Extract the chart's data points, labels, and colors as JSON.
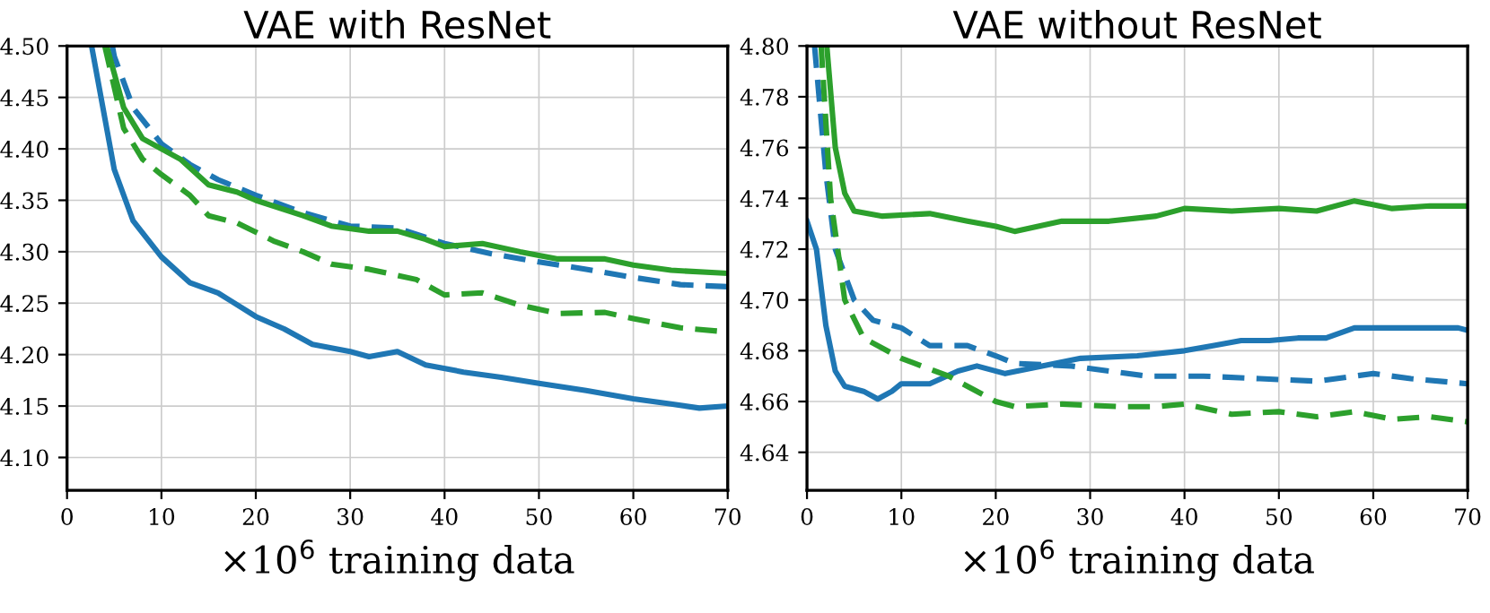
{
  "chart_data": [
    {
      "type": "line",
      "title": "VAE with ResNet",
      "xlabel": "×10$^{6}$ training data",
      "xlim": [
        0,
        70
      ],
      "xticks": [
        0,
        10,
        20,
        30,
        40,
        50,
        60,
        70
      ],
      "ylim": [
        4.068,
        4.5
      ],
      "yticks": [
        {
          "value": 4.1,
          "label": "4.10"
        },
        {
          "value": 4.15,
          "label": "4.15"
        },
        {
          "value": 4.2,
          "label": "4.20"
        },
        {
          "value": 4.25,
          "label": "4.25"
        },
        {
          "value": 4.3,
          "label": "4.30"
        },
        {
          "value": 4.35,
          "label": "4.35"
        },
        {
          "value": 4.4,
          "label": "4.40"
        },
        {
          "value": 4.45,
          "label": "4.45"
        },
        {
          "value": 4.5,
          "label": "4.50"
        }
      ],
      "grid": true,
      "legend": false,
      "marker": "none",
      "series": [
        {
          "color": "#1f77b4",
          "line_style": "solid",
          "x": [
            2.6,
            3,
            5,
            7,
            10,
            13,
            16,
            20,
            23,
            26,
            30,
            32,
            35,
            38,
            42,
            46,
            50,
            55,
            60,
            64,
            67,
            70
          ],
          "values": [
            4.5,
            4.48,
            4.38,
            4.33,
            4.295,
            4.27,
            4.26,
            4.237,
            4.225,
            4.21,
            4.203,
            4.198,
            4.203,
            4.19,
            4.183,
            4.178,
            4.172,
            4.165,
            4.157,
            4.152,
            4.148,
            4.15
          ]
        },
        {
          "color": "#1f77b4",
          "line_style": "dashed",
          "x": [
            4.8,
            5,
            7,
            10,
            13,
            16,
            20,
            25,
            30,
            35,
            40,
            45,
            50,
            55,
            60,
            65,
            70
          ],
          "values": [
            4.5,
            4.49,
            4.44,
            4.405,
            4.385,
            4.37,
            4.355,
            4.338,
            4.325,
            4.323,
            4.308,
            4.298,
            4.29,
            4.283,
            4.275,
            4.268,
            4.266
          ]
        },
        {
          "color": "#2ca02c",
          "line_style": "solid",
          "x": [
            4.2,
            6,
            8,
            10,
            12,
            15,
            18,
            20,
            25,
            28,
            32,
            35,
            38,
            40,
            44,
            48,
            52,
            57,
            60,
            64,
            70
          ],
          "values": [
            4.5,
            4.44,
            4.41,
            4.4,
            4.39,
            4.365,
            4.358,
            4.35,
            4.335,
            4.325,
            4.32,
            4.32,
            4.312,
            4.305,
            4.308,
            4.3,
            4.293,
            4.293,
            4.287,
            4.282,
            4.279
          ]
        },
        {
          "color": "#2ca02c",
          "line_style": "dashed",
          "x": [
            4,
            6,
            8,
            10,
            13,
            15,
            18,
            22,
            25,
            28,
            32,
            37,
            40,
            44,
            48,
            52,
            57,
            60,
            65,
            70
          ],
          "values": [
            4.5,
            4.42,
            4.39,
            4.375,
            4.355,
            4.335,
            4.328,
            4.31,
            4.3,
            4.288,
            4.283,
            4.273,
            4.258,
            4.26,
            4.248,
            4.24,
            4.241,
            4.235,
            4.226,
            4.222
          ]
        }
      ]
    },
    {
      "type": "line",
      "title": "VAE without ResNet",
      "xlabel": "×10$^{6}$ training data",
      "xlim": [
        0,
        70
      ],
      "xticks": [
        0,
        10,
        20,
        30,
        40,
        50,
        60,
        70
      ],
      "ylim": [
        4.625,
        4.8
      ],
      "yticks": [
        {
          "value": 4.64,
          "label": "4.64"
        },
        {
          "value": 4.66,
          "label": "4.66"
        },
        {
          "value": 4.68,
          "label": "4.68"
        },
        {
          "value": 4.7,
          "label": "4.70"
        },
        {
          "value": 4.72,
          "label": "4.72"
        },
        {
          "value": 4.74,
          "label": "4.74"
        },
        {
          "value": 4.76,
          "label": "4.76"
        },
        {
          "value": 4.78,
          "label": "4.78"
        },
        {
          "value": 4.8,
          "label": "4.80"
        }
      ],
      "grid": true,
      "legend": false,
      "marker": "none",
      "series": [
        {
          "color": "#1f77b4",
          "line_style": "solid",
          "x": [
            0,
            1,
            2,
            3,
            4,
            6,
            7.5,
            9,
            10,
            13,
            16,
            18,
            21,
            25,
            29,
            35,
            40,
            43,
            46,
            49,
            52,
            55,
            58,
            62,
            66,
            69,
            70
          ],
          "values": [
            4.731,
            4.72,
            4.69,
            4.672,
            4.666,
            4.664,
            4.661,
            4.664,
            4.667,
            4.667,
            4.672,
            4.674,
            4.671,
            4.674,
            4.677,
            4.678,
            4.68,
            4.682,
            4.684,
            4.684,
            4.685,
            4.685,
            4.689,
            4.689,
            4.689,
            4.689,
            4.688
          ]
        },
        {
          "color": "#1f77b4",
          "line_style": "dashed",
          "x": [
            0.8,
            2,
            3,
            5,
            7,
            10,
            13,
            17,
            20,
            22,
            28,
            32,
            36,
            42,
            48,
            54,
            60,
            64,
            70
          ],
          "values": [
            4.8,
            4.75,
            4.72,
            4.7,
            4.692,
            4.689,
            4.682,
            4.682,
            4.678,
            4.675,
            4.674,
            4.672,
            4.67,
            4.67,
            4.669,
            4.668,
            4.671,
            4.669,
            4.667
          ]
        },
        {
          "color": "#2ca02c",
          "line_style": "solid",
          "x": [
            2.1,
            3,
            4,
            5,
            8,
            13,
            17,
            20,
            22,
            27,
            32,
            37,
            40,
            45,
            50,
            54,
            58,
            62,
            66,
            70
          ],
          "values": [
            4.8,
            4.76,
            4.742,
            4.735,
            4.733,
            4.734,
            4.731,
            4.729,
            4.727,
            4.731,
            4.731,
            4.733,
            4.736,
            4.735,
            4.736,
            4.735,
            4.739,
            4.736,
            4.737,
            4.737
          ]
        },
        {
          "color": "#2ca02c",
          "line_style": "dashed",
          "x": [
            1.5,
            2.5,
            4,
            6,
            10,
            15,
            20,
            22,
            27,
            33,
            37,
            40,
            45,
            50,
            54,
            58,
            62,
            66,
            70
          ],
          "values": [
            4.8,
            4.74,
            4.7,
            4.685,
            4.677,
            4.67,
            4.66,
            4.658,
            4.659,
            4.658,
            4.658,
            4.659,
            4.655,
            4.656,
            4.654,
            4.656,
            4.653,
            4.654,
            4.652
          ]
        }
      ]
    }
  ]
}
